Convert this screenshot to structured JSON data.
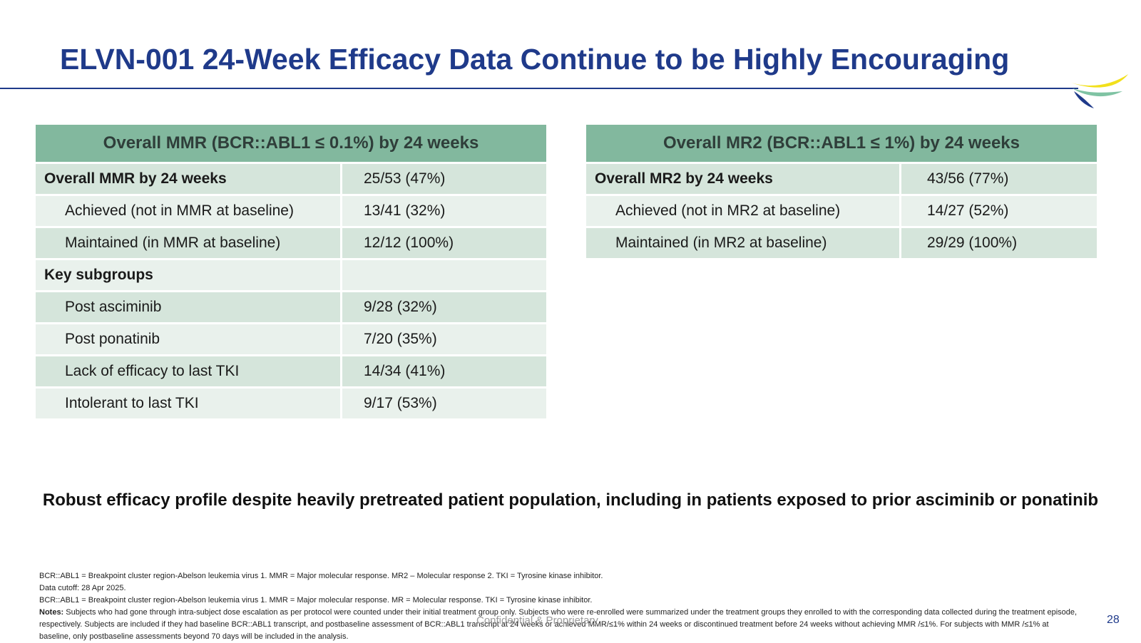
{
  "title": "ELVN-001 24-Week Efficacy Data Continue to be Highly Encouraging",
  "logo": {
    "colors": [
      "#f2e01c",
      "#7fc3a3",
      "#1f3a8a"
    ]
  },
  "mmr_table": {
    "header": "Overall MMR (BCR::ABL1 ≤ 0.1%) by 24 weeks",
    "rows": [
      {
        "label": "Overall MMR by 24 weeks",
        "value": "25/53 (47%)"
      },
      {
        "label": "Achieved (not in MMR at baseline)",
        "value": "13/41 (32%)"
      },
      {
        "label": "Maintained (in MMR at baseline)",
        "value": "12/12 (100%)"
      },
      {
        "label": "Key subgroups",
        "value": ""
      },
      {
        "label": "Post asciminib",
        "value": "9/28 (32%)"
      },
      {
        "label": "Post ponatinib",
        "value": "7/20 (35%)"
      },
      {
        "label": "Lack of efficacy to last TKI",
        "value": "14/34 (41%)"
      },
      {
        "label": "Intolerant to last TKI",
        "value": "9/17 (53%)"
      }
    ]
  },
  "mr2_table": {
    "header": "Overall MR2 (BCR::ABL1 ≤ 1%) by 24 weeks",
    "rows": [
      {
        "label": "Overall MR2 by 24 weeks",
        "value": "43/56 (77%)"
      },
      {
        "label": "Achieved (not in MR2 at baseline)",
        "value": "14/27 (52%)"
      },
      {
        "label": "Maintained (in MR2 at baseline)",
        "value": "29/29 (100%)"
      }
    ]
  },
  "tagline": "Robust efficacy profile despite heavily pretreated patient population, including in patients exposed to prior asciminib or ponatinib",
  "footnotes": {
    "line1": "BCR::ABL1 = Breakpoint cluster region-Abelson leukemia virus 1. MMR = Major molecular response. MR2 – Molecular response 2. TKI = Tyrosine kinase inhibitor.",
    "line2": "Data cutoff: 28 Apr 2025.",
    "line3": "BCR::ABL1 = Breakpoint cluster region-Abelson leukemia virus 1. MMR = Major molecular response. MR = Molecular response. TKI = Tyrosine kinase inhibitor.",
    "notes_label": "Notes:",
    "notes_text": " Subjects who had gone through intra-subject dose escalation as per protocol were counted under their initial treatment group only. Subjects who were re-enrolled were summarized under the treatment groups they enrolled to with the corresponding data collected during the treatment episode, respectively. Subjects are included if they had baseline BCR::ABL1 transcript, and postbaseline assessment of BCR::ABL1 transcript at 24 weeks or achieved MMR/≤1% within 24 weeks or discontinued treatment before 24 weeks without achieving MMR /≤1%. For subjects with MMR /≤1% at baseline, only postbaseline assessments beyond 70 days will be included in the analysis."
  },
  "confidential": "Confidential & Proprietary",
  "page_number": "28"
}
